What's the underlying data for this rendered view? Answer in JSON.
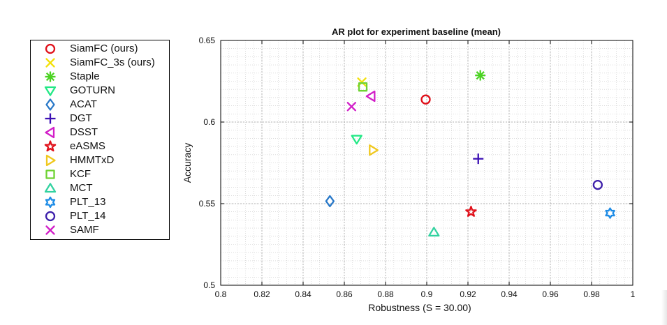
{
  "chart_data": {
    "type": "scatter",
    "title": "AR plot for experiment baseline (mean)",
    "xlabel": "Robustness (S = 30.00)",
    "ylabel": "Accuracy",
    "xlim": [
      0.8,
      1.0
    ],
    "ylim": [
      0.5,
      0.65
    ],
    "xticks": [
      "0.8",
      "0.82",
      "0.84",
      "0.86",
      "0.88",
      "0.9",
      "0.92",
      "0.94",
      "0.96",
      "0.98",
      "1"
    ],
    "yticks": [
      "0.5",
      "0.55",
      "0.6",
      "0.65"
    ],
    "grid": true,
    "legend_position": "outside-left",
    "series": [
      {
        "name": "SiamFC (ours)",
        "marker": "circle",
        "color": "#e0101a",
        "x": 0.8995,
        "y": 0.6138
      },
      {
        "name": "SiamFC_3s (ours)",
        "marker": "x",
        "color": "#f3e00a",
        "x": 0.8685,
        "y": 0.6245
      },
      {
        "name": "Staple",
        "marker": "asterisk",
        "color": "#4bd322",
        "x": 0.926,
        "y": 0.6286
      },
      {
        "name": "GOTURN",
        "marker": "triangle-down",
        "color": "#22e885",
        "x": 0.866,
        "y": 0.5895
      },
      {
        "name": "ACAT",
        "marker": "diamond",
        "color": "#2878c8",
        "x": 0.853,
        "y": 0.5515
      },
      {
        "name": "DGT",
        "marker": "plus",
        "color": "#3c10b4",
        "x": 0.925,
        "y": 0.5775
      },
      {
        "name": "DSST",
        "marker": "triangle-left",
        "color": "#d21ec8",
        "x": 0.873,
        "y": 0.6158
      },
      {
        "name": "eASMS",
        "marker": "pentagram",
        "color": "#e0101a",
        "x": 0.9215,
        "y": 0.545
      },
      {
        "name": "HMMTxD",
        "marker": "triangle-right",
        "color": "#f0c81e",
        "x": 0.874,
        "y": 0.5828
      },
      {
        "name": "KCF",
        "marker": "square",
        "color": "#6ed232",
        "x": 0.869,
        "y": 0.6215
      },
      {
        "name": "MCT",
        "marker": "triangle-up",
        "color": "#32d2a0",
        "x": 0.9035,
        "y": 0.5325
      },
      {
        "name": "PLT_13",
        "marker": "hexagram",
        "color": "#1e8ce6",
        "x": 0.989,
        "y": 0.5442
      },
      {
        "name": "PLT_14",
        "marker": "circle",
        "color": "#3c1eaa",
        "x": 0.983,
        "y": 0.5615
      },
      {
        "name": "SAMF",
        "marker": "x",
        "color": "#d21ec8",
        "x": 0.8635,
        "y": 0.6095
      }
    ]
  }
}
